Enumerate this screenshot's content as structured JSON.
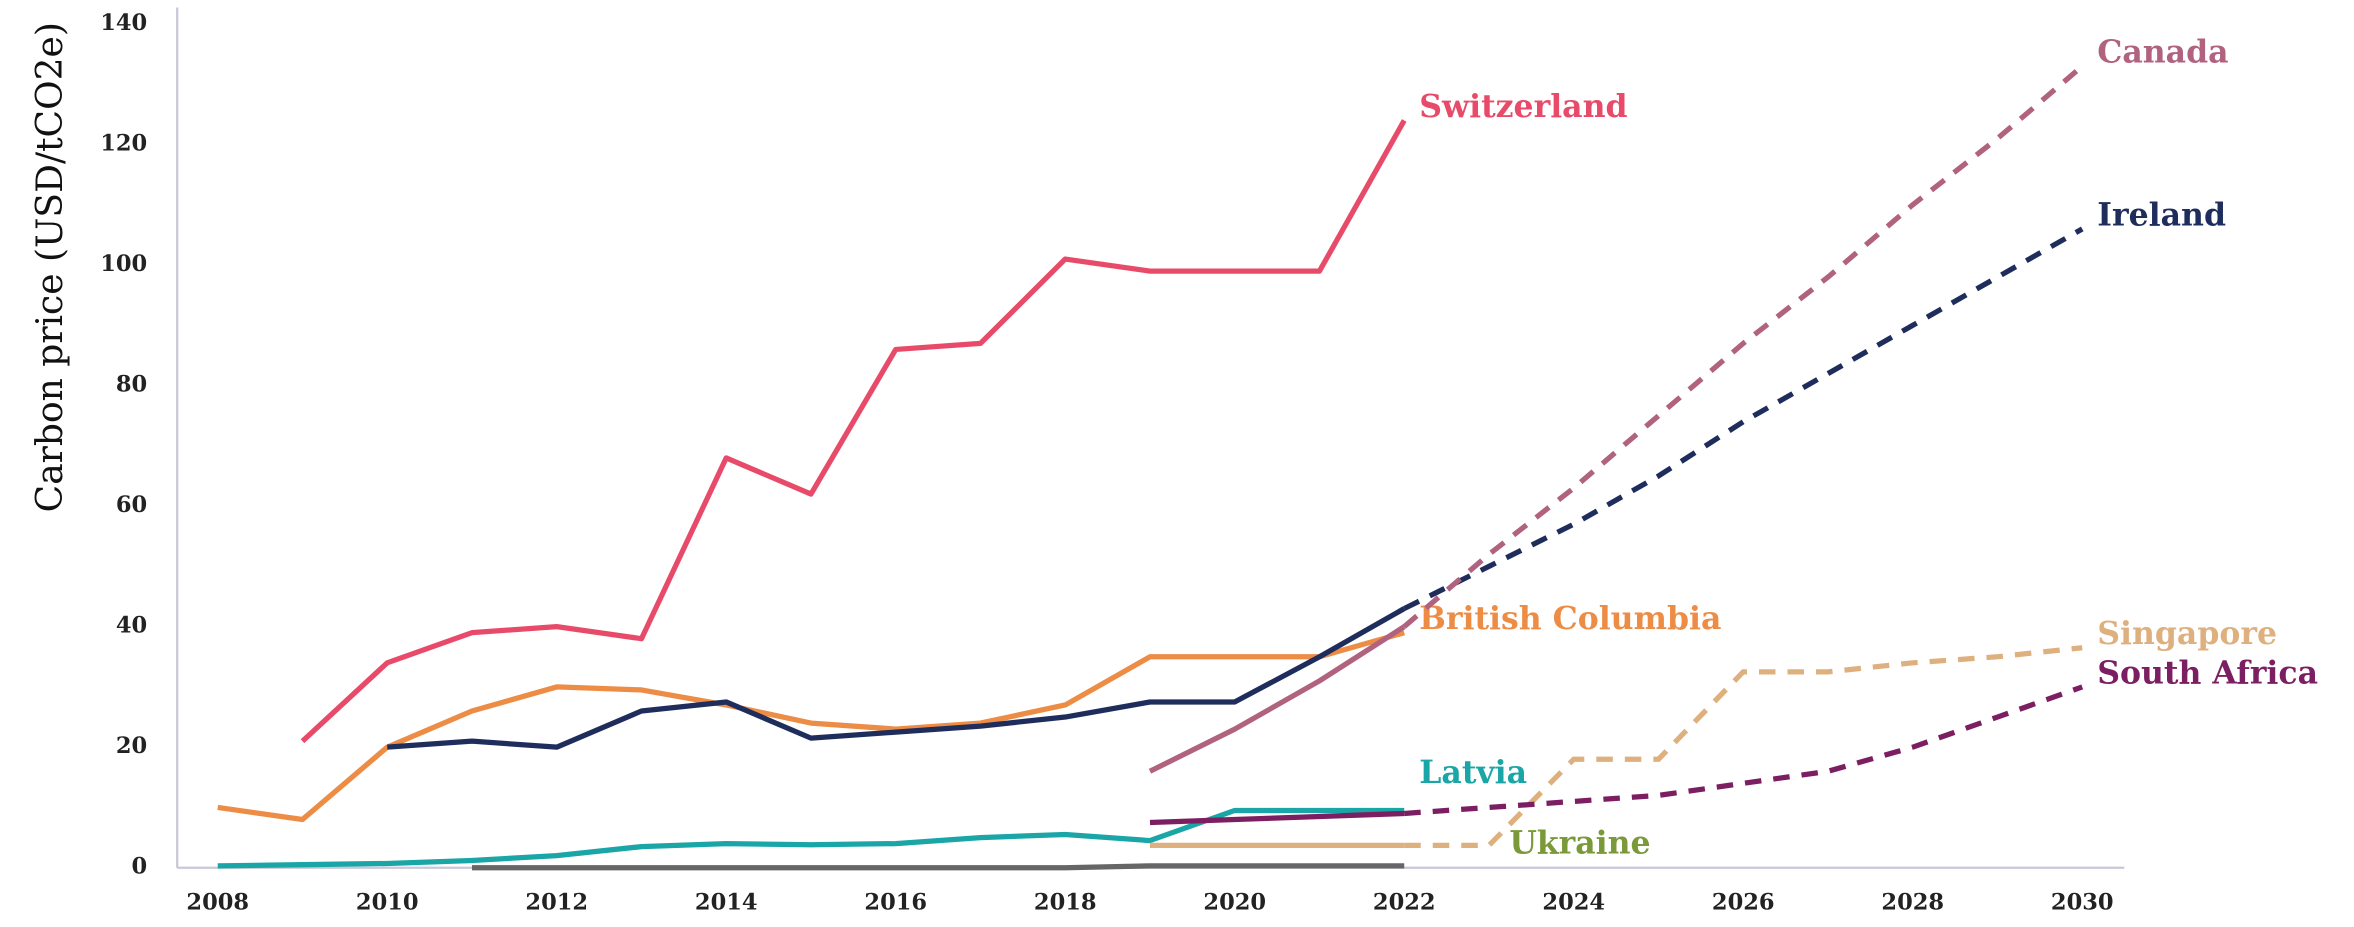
{
  "chart_data": {
    "type": "line",
    "y_label": "Carbon price (USD/tCO2e)",
    "x": [
      2008,
      2009,
      2010,
      2011,
      2012,
      2013,
      2014,
      2015,
      2016,
      2017,
      2018,
      2019,
      2020,
      2021,
      2022,
      2023,
      2024,
      2025,
      2026,
      2027,
      2028,
      2029,
      2030
    ],
    "xlim": [
      2008,
      2030
    ],
    "xticks": [
      2008,
      2010,
      2012,
      2014,
      2016,
      2018,
      2020,
      2022,
      2024,
      2026,
      2028,
      2030
    ],
    "ylim": [
      0,
      140
    ],
    "yticks": [
      0,
      20,
      40,
      60,
      80,
      100,
      120,
      140
    ],
    "grid": false,
    "series": [
      {
        "name": "Switzerland",
        "color": "#e84b6a",
        "values": [
          null,
          21,
          34,
          39,
          40,
          38,
          68,
          62,
          86,
          87,
          101,
          99,
          99,
          99,
          124,
          null,
          null,
          null,
          null,
          null,
          null,
          null,
          null
        ],
        "projected": [
          null,
          null,
          null,
          null,
          null,
          null,
          null,
          null,
          null,
          null,
          null,
          null,
          null,
          null,
          null,
          null,
          null,
          null,
          null,
          null,
          null,
          null,
          null
        ]
      },
      {
        "name": "British Columbia",
        "color": "#ec8c45",
        "values": [
          10,
          8,
          20,
          26,
          30,
          29.5,
          27,
          24,
          23,
          24,
          27,
          35,
          35,
          35,
          39,
          null,
          null,
          null,
          null,
          null,
          null,
          null,
          null
        ],
        "projected": [
          null,
          null,
          null,
          null,
          null,
          null,
          null,
          null,
          null,
          null,
          null,
          null,
          null,
          null,
          null,
          null,
          null,
          null,
          null,
          null,
          null,
          null,
          null
        ]
      },
      {
        "name": "Ireland",
        "color": "#1f2d5c",
        "values": [
          null,
          null,
          20,
          21,
          20,
          26,
          27.5,
          21.5,
          22.5,
          23.5,
          25,
          27.5,
          27.5,
          35,
          43,
          null,
          null,
          null,
          null,
          null,
          null,
          null,
          null
        ],
        "projected": [
          null,
          null,
          null,
          null,
          null,
          null,
          null,
          null,
          null,
          null,
          null,
          null,
          null,
          null,
          null,
          50,
          57,
          65,
          74,
          82,
          90,
          98,
          106
        ]
      },
      {
        "name": "Canada",
        "color": "#b0627e",
        "values": [
          null,
          null,
          null,
          null,
          null,
          null,
          null,
          null,
          null,
          null,
          null,
          16,
          23,
          31,
          40,
          null,
          null,
          null,
          null,
          null,
          null,
          null,
          null
        ],
        "projected": [
          null,
          null,
          null,
          null,
          null,
          null,
          null,
          null,
          null,
          null,
          null,
          null,
          null,
          null,
          null,
          52,
          63,
          75,
          87,
          98,
          110,
          121,
          133
        ]
      },
      {
        "name": "Latvia",
        "color": "#1aa6a6",
        "values": [
          0.3,
          0.5,
          0.7,
          1.2,
          2,
          3.5,
          4,
          3.8,
          4,
          5,
          5.5,
          4.5,
          9.5,
          9.5,
          9.5,
          null,
          null,
          null,
          null,
          null,
          null,
          null,
          null
        ],
        "projected": [
          null,
          null,
          null,
          null,
          null,
          null,
          null,
          null,
          null,
          null,
          null,
          null,
          null,
          null,
          null,
          null,
          null,
          null,
          null,
          null,
          null,
          null,
          null
        ]
      },
      {
        "name": "Ukraine",
        "color": "#666666",
        "label_color": "#7a9a3a",
        "values": [
          null,
          null,
          null,
          0,
          0,
          0,
          0,
          0,
          0,
          0,
          0,
          0.3,
          0.3,
          0.3,
          0.3,
          null,
          null,
          null,
          null,
          null,
          null,
          null,
          null
        ],
        "projected": [
          null,
          null,
          null,
          null,
          null,
          null,
          null,
          null,
          null,
          null,
          null,
          null,
          null,
          null,
          null,
          null,
          null,
          null,
          null,
          null,
          null,
          null,
          null
        ]
      },
      {
        "name": "Singapore",
        "color": "#ddb07e",
        "values": [
          null,
          null,
          null,
          null,
          null,
          null,
          null,
          null,
          null,
          null,
          null,
          3.7,
          3.7,
          3.7,
          3.7,
          null,
          null,
          null,
          null,
          null,
          null,
          null,
          null
        ],
        "projected": [
          null,
          null,
          null,
          null,
          null,
          null,
          null,
          null,
          null,
          null,
          null,
          null,
          null,
          null,
          null,
          3.7,
          18,
          18,
          32.5,
          32.5,
          34,
          35,
          36.5
        ]
      },
      {
        "name": "South Africa",
        "color": "#7c1f62",
        "values": [
          null,
          null,
          null,
          null,
          null,
          null,
          null,
          null,
          null,
          null,
          null,
          7.5,
          8,
          8.5,
          9,
          null,
          null,
          null,
          null,
          null,
          null,
          null,
          null
        ],
        "projected": [
          null,
          null,
          null,
          null,
          null,
          null,
          null,
          null,
          null,
          null,
          null,
          null,
          null,
          null,
          null,
          10,
          11,
          12,
          14,
          16,
          20,
          25,
          30
        ]
      }
    ]
  }
}
